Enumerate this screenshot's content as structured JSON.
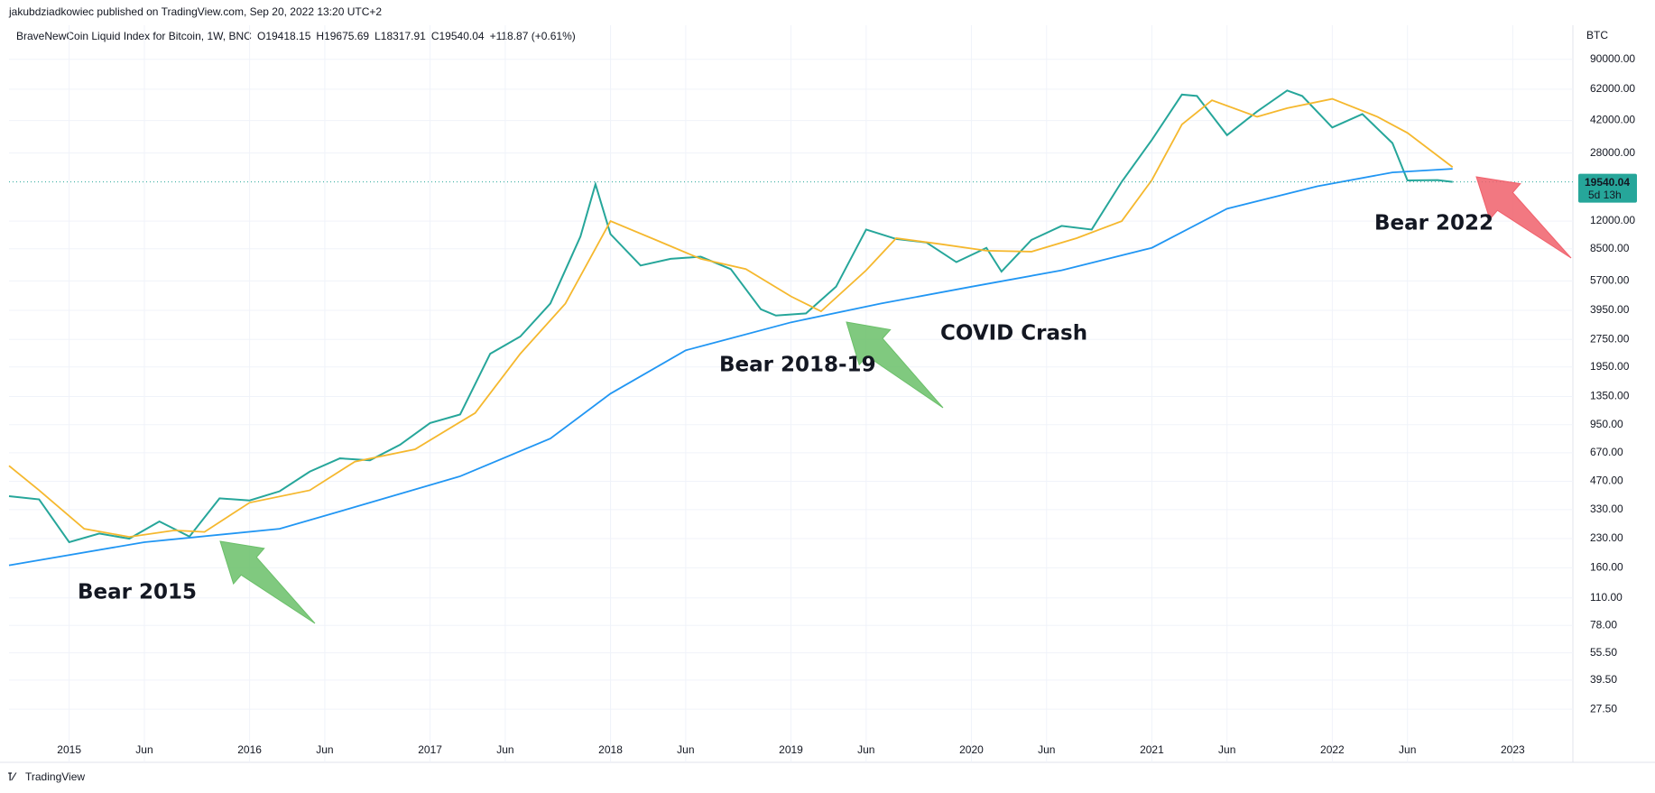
{
  "header": {
    "byline": "jakubdziadkowiec published on TradingView.com, Sep 20, 2022 13:20 UTC+2",
    "footer": "TradingView"
  },
  "chart_data": {
    "type": "line",
    "log_scale": true,
    "grid": true,
    "title": "BraveNewCoin Liquid Index for Bitcoin, 1W, BNC",
    "ohlc": [
      "O19418.15",
      "H19675.69",
      "L18317.91",
      "C19540.04",
      "+118.87 (+0.61%)"
    ],
    "y_unit": "BTC",
    "last_price": {
      "value": 19540.04,
      "label": "19540.04"
    },
    "countdown": "5d 13h",
    "annotations": [
      "Bear 2015",
      "Bear 2018-19",
      "COVID Crash",
      "Bear 2022"
    ],
    "xlim": [
      "2014-09",
      "2023-05"
    ],
    "xticks": [
      {
        "value": "2015-01",
        "label": "2015"
      },
      {
        "value": "2015-06",
        "label": "Jun"
      },
      {
        "value": "2016-01",
        "label": "2016"
      },
      {
        "value": "2016-06",
        "label": "Jun"
      },
      {
        "value": "2017-01",
        "label": "2017"
      },
      {
        "value": "2017-06",
        "label": "Jun"
      },
      {
        "value": "2018-01",
        "label": "2018"
      },
      {
        "value": "2018-06",
        "label": "Jun"
      },
      {
        "value": "2019-01",
        "label": "2019"
      },
      {
        "value": "2019-06",
        "label": "Jun"
      },
      {
        "value": "2020-01",
        "label": "2020"
      },
      {
        "value": "2020-06",
        "label": "Jun"
      },
      {
        "value": "2021-01",
        "label": "2021"
      },
      {
        "value": "2021-06",
        "label": "Jun"
      },
      {
        "value": "2022-01",
        "label": "2022"
      },
      {
        "value": "2022-06",
        "label": "Jun"
      },
      {
        "value": "2023-01",
        "label": "2023"
      }
    ],
    "ylim": [
      19,
      130000
    ],
    "yticks": [
      {
        "value": 90000,
        "label": "90000.00"
      },
      {
        "value": 62000,
        "label": "62000.00"
      },
      {
        "value": 42000,
        "label": "42000.00"
      },
      {
        "value": 28000,
        "label": "28000.00"
      },
      {
        "value": 12000,
        "label": "12000.00"
      },
      {
        "value": 8500,
        "label": "8500.00"
      },
      {
        "value": 5700,
        "label": "5700.00"
      },
      {
        "value": 3950,
        "label": "3950.00"
      },
      {
        "value": 2750,
        "label": "2750.00"
      },
      {
        "value": 1950,
        "label": "1950.00"
      },
      {
        "value": 1350,
        "label": "1350.00"
      },
      {
        "value": 950,
        "label": "950.00"
      },
      {
        "value": 670,
        "label": "670.00"
      },
      {
        "value": 470,
        "label": "470.00"
      },
      {
        "value": 330,
        "label": "330.00"
      },
      {
        "value": 230,
        "label": "230.00"
      },
      {
        "value": 160,
        "label": "160.00"
      },
      {
        "value": 110,
        "label": "110.00"
      },
      {
        "value": 78,
        "label": "78.00"
      },
      {
        "value": 55.5,
        "label": "55.50"
      },
      {
        "value": 39.5,
        "label": "39.50"
      },
      {
        "value": 27.5,
        "label": "27.50"
      }
    ],
    "series": [
      {
        "color": "#26a69a",
        "x": [
          "2014-09",
          "2014-11",
          "2015-01",
          "2015-03",
          "2015-05",
          "2015-07",
          "2015-09",
          "2015-11",
          "2016-01",
          "2016-03",
          "2016-05",
          "2016-07",
          "2016-09",
          "2016-11",
          "2017-01",
          "2017-03",
          "2017-05",
          "2017-07",
          "2017-09",
          "2017-11",
          "2017-12",
          "2018-01",
          "2018-03",
          "2018-05",
          "2018-07",
          "2018-09",
          "2018-11",
          "2018-12",
          "2019-02",
          "2019-04",
          "2019-06",
          "2019-08",
          "2019-10",
          "2019-12",
          "2020-02",
          "2020-03",
          "2020-05",
          "2020-07",
          "2020-09",
          "2020-11",
          "2021-01",
          "2021-03",
          "2021-04",
          "2021-06",
          "2021-08",
          "2021-10",
          "2021-11",
          "2022-01",
          "2022-03",
          "2022-05",
          "2022-06",
          "2022-08",
          "2022-09"
        ],
        "values": [
          390,
          375,
          220,
          245,
          230,
          285,
          236,
          380,
          370,
          415,
          530,
          625,
          610,
          740,
          970,
          1080,
          2300,
          2850,
          4300,
          9900,
          19000,
          10200,
          6900,
          7500,
          7700,
          6600,
          4000,
          3700,
          3800,
          5300,
          10800,
          9600,
          9200,
          7200,
          8600,
          6400,
          9500,
          11300,
          10800,
          19600,
          33000,
          58000,
          57000,
          35000,
          47000,
          61000,
          57000,
          38500,
          45500,
          31700,
          19900,
          20000,
          19540
        ]
      },
      {
        "color": "#f5b82e",
        "x": [
          "2014-09",
          "2014-11",
          "2015-02",
          "2015-05",
          "2015-08",
          "2015-10",
          "2016-01",
          "2016-05",
          "2016-08",
          "2016-12",
          "2017-04",
          "2017-07",
          "2017-10",
          "2018-01",
          "2018-04",
          "2018-07",
          "2018-10",
          "2019-01",
          "2019-03",
          "2019-06",
          "2019-08",
          "2019-11",
          "2020-02",
          "2020-05",
          "2020-08",
          "2020-11",
          "2021-01",
          "2021-03",
          "2021-05",
          "2021-08",
          "2021-10",
          "2022-01",
          "2022-04",
          "2022-06",
          "2022-09"
        ],
        "values": [
          570,
          420,
          260,
          235,
          255,
          250,
          360,
          420,
          600,
          700,
          1100,
          2300,
          4300,
          12000,
          9500,
          7500,
          6600,
          4700,
          3900,
          6500,
          9700,
          9000,
          8300,
          8200,
          9700,
          12000,
          20000,
          40000,
          54000,
          44000,
          49000,
          55000,
          44000,
          36000,
          23500
        ]
      },
      {
        "color": "#2196f3",
        "x": [
          "2014-09",
          "2015-06",
          "2016-03",
          "2016-09",
          "2017-03",
          "2017-09",
          "2018-01",
          "2018-06",
          "2019-01",
          "2019-07",
          "2020-01",
          "2020-07",
          "2021-01",
          "2021-06",
          "2021-12",
          "2022-05",
          "2022-09"
        ],
        "values": [
          165,
          220,
          260,
          360,
          500,
          800,
          1400,
          2400,
          3400,
          4300,
          5300,
          6500,
          8600,
          14000,
          18500,
          22000,
          23000
        ]
      }
    ]
  }
}
